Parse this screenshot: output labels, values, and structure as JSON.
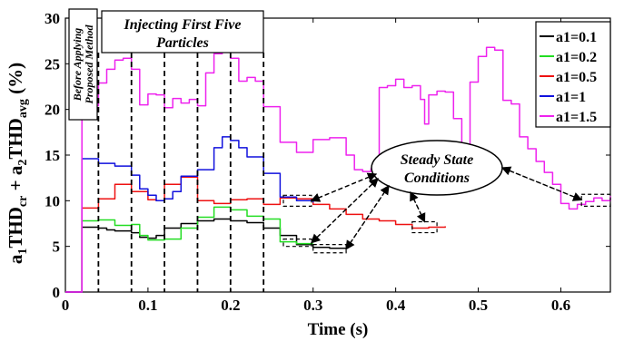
{
  "chart_data": {
    "type": "line",
    "xlabel": "Time (s)",
    "ylabel_parts": [
      "a",
      "1",
      "THD",
      "cr",
      " + a",
      "2",
      "THD",
      "avg",
      " (%)"
    ],
    "xlim": [
      0,
      0.66
    ],
    "ylim": [
      0,
      30
    ],
    "xticks": [
      0,
      0.1,
      0.2,
      0.3,
      0.4,
      0.5,
      0.6
    ],
    "xtick_labels": [
      "0",
      "0.1",
      "0.2",
      "0.3",
      "0.4",
      "0.5",
      "0.6"
    ],
    "yticks": [
      0,
      5,
      10,
      15,
      20,
      25,
      30
    ],
    "ytick_labels": [
      "0",
      "5",
      "10",
      "15",
      "20",
      "25",
      "30"
    ],
    "grid": false,
    "legend_position": "top-right",
    "particle_times": [
      0.04,
      0.08,
      0.12,
      0.16,
      0.2,
      0.24
    ],
    "annotations": {
      "before": [
        "Before Applying",
        "Proposed Method"
      ],
      "injecting": [
        "Injecting First Five",
        "Particles"
      ],
      "steady": [
        "Steady State",
        "Conditions"
      ]
    },
    "series": [
      {
        "name": "a1=0.1",
        "color": "#000000",
        "points": [
          [
            0.0,
            0
          ],
          [
            0.02,
            0
          ],
          [
            0.02,
            7.1
          ],
          [
            0.04,
            7.0
          ],
          [
            0.05,
            6.8
          ],
          [
            0.06,
            6.7
          ],
          [
            0.08,
            6.5
          ],
          [
            0.09,
            6.0
          ],
          [
            0.1,
            5.9
          ],
          [
            0.11,
            6.2
          ],
          [
            0.12,
            7.0
          ],
          [
            0.14,
            7.5
          ],
          [
            0.16,
            7.8
          ],
          [
            0.18,
            8.0
          ],
          [
            0.2,
            7.8
          ],
          [
            0.22,
            7.6
          ],
          [
            0.24,
            7.0
          ],
          [
            0.26,
            6.2
          ],
          [
            0.28,
            5.2
          ],
          [
            0.3,
            4.9
          ],
          [
            0.32,
            4.8
          ],
          [
            0.34,
            4.9
          ]
        ]
      },
      {
        "name": "a1=0.2",
        "color": "#22dd22",
        "points": [
          [
            0.0,
            0
          ],
          [
            0.02,
            0
          ],
          [
            0.02,
            7.8
          ],
          [
            0.04,
            7.9
          ],
          [
            0.06,
            7.3
          ],
          [
            0.08,
            7.4
          ],
          [
            0.09,
            6.2
          ],
          [
            0.1,
            5.7
          ],
          [
            0.12,
            5.8
          ],
          [
            0.14,
            7.0
          ],
          [
            0.16,
            8.2
          ],
          [
            0.18,
            9.3
          ],
          [
            0.2,
            9.0
          ],
          [
            0.22,
            8.3
          ],
          [
            0.24,
            8.0
          ],
          [
            0.26,
            5.5
          ],
          [
            0.28,
            5.3
          ],
          [
            0.3,
            5.3
          ]
        ]
      },
      {
        "name": "a1=0.5",
        "color": "#ee1111",
        "points": [
          [
            0.0,
            0
          ],
          [
            0.02,
            0
          ],
          [
            0.02,
            9.2
          ],
          [
            0.04,
            10.2
          ],
          [
            0.06,
            11.8
          ],
          [
            0.08,
            11.0
          ],
          [
            0.1,
            10.1
          ],
          [
            0.11,
            10.0
          ],
          [
            0.12,
            11.8
          ],
          [
            0.14,
            12.6
          ],
          [
            0.16,
            10.0
          ],
          [
            0.18,
            9.7
          ],
          [
            0.2,
            10.1
          ],
          [
            0.22,
            10.2
          ],
          [
            0.24,
            9.6
          ],
          [
            0.26,
            10.3
          ],
          [
            0.28,
            10.2
          ],
          [
            0.3,
            9.6
          ],
          [
            0.32,
            9.1
          ],
          [
            0.34,
            8.5
          ],
          [
            0.36,
            8.0
          ],
          [
            0.38,
            7.8
          ],
          [
            0.4,
            7.4
          ],
          [
            0.42,
            7.0
          ],
          [
            0.44,
            7.1
          ],
          [
            0.46,
            7.2
          ]
        ]
      },
      {
        "name": "a1=1",
        "color": "#1111dd",
        "points": [
          [
            0.0,
            0
          ],
          [
            0.02,
            0
          ],
          [
            0.02,
            14.6
          ],
          [
            0.04,
            14.1
          ],
          [
            0.06,
            13.8
          ],
          [
            0.08,
            12.8
          ],
          [
            0.09,
            11.3
          ],
          [
            0.1,
            10.6
          ],
          [
            0.11,
            10.0
          ],
          [
            0.12,
            10.2
          ],
          [
            0.13,
            11.0
          ],
          [
            0.14,
            12.7
          ],
          [
            0.16,
            13.4
          ],
          [
            0.18,
            15.8
          ],
          [
            0.19,
            17.0
          ],
          [
            0.2,
            16.6
          ],
          [
            0.21,
            15.8
          ],
          [
            0.22,
            14.8
          ],
          [
            0.24,
            13.0
          ],
          [
            0.26,
            10.4
          ],
          [
            0.28,
            10.0
          ],
          [
            0.3,
            9.8
          ]
        ]
      },
      {
        "name": "a1=1.5",
        "color": "#ee22ee",
        "points": [
          [
            0.0,
            0
          ],
          [
            0.02,
            0
          ],
          [
            0.02,
            18.9
          ],
          [
            0.03,
            20.4
          ],
          [
            0.04,
            22.9
          ],
          [
            0.05,
            24.4
          ],
          [
            0.06,
            25.4
          ],
          [
            0.07,
            25.6
          ],
          [
            0.08,
            24.4
          ],
          [
            0.09,
            20.5
          ],
          [
            0.1,
            21.7
          ],
          [
            0.11,
            21.6
          ],
          [
            0.12,
            20.2
          ],
          [
            0.13,
            21.2
          ],
          [
            0.14,
            20.7
          ],
          [
            0.15,
            21.1
          ],
          [
            0.16,
            20.4
          ],
          [
            0.17,
            24.0
          ],
          [
            0.18,
            26.1
          ],
          [
            0.19,
            26.3
          ],
          [
            0.2,
            25.6
          ],
          [
            0.21,
            23.1
          ],
          [
            0.22,
            23.5
          ],
          [
            0.23,
            23.1
          ],
          [
            0.24,
            20.3
          ],
          [
            0.26,
            16.4
          ],
          [
            0.28,
            15.3
          ],
          [
            0.3,
            16.7
          ],
          [
            0.32,
            16.9
          ],
          [
            0.33,
            16.9
          ],
          [
            0.34,
            15.0
          ],
          [
            0.35,
            13.4
          ],
          [
            0.36,
            13.2
          ],
          [
            0.37,
            13.5
          ],
          [
            0.38,
            22.4
          ],
          [
            0.39,
            22.6
          ],
          [
            0.4,
            23.3
          ],
          [
            0.41,
            22.4
          ],
          [
            0.42,
            22.6
          ],
          [
            0.43,
            21.1
          ],
          [
            0.435,
            18.4
          ],
          [
            0.44,
            21.6
          ],
          [
            0.45,
            22.0
          ],
          [
            0.46,
            21.9
          ],
          [
            0.47,
            19.0
          ],
          [
            0.48,
            15.9
          ],
          [
            0.49,
            23.0
          ],
          [
            0.5,
            25.8
          ],
          [
            0.51,
            26.8
          ],
          [
            0.52,
            26.5
          ],
          [
            0.53,
            21.0
          ],
          [
            0.54,
            20.6
          ],
          [
            0.55,
            17.0
          ],
          [
            0.56,
            15.7
          ],
          [
            0.57,
            14.3
          ],
          [
            0.58,
            13.1
          ],
          [
            0.59,
            11.8
          ],
          [
            0.6,
            9.7
          ],
          [
            0.61,
            9.1
          ],
          [
            0.62,
            9.6
          ],
          [
            0.63,
            9.9
          ],
          [
            0.64,
            10.3
          ],
          [
            0.65,
            10.0
          ],
          [
            0.66,
            10.5
          ]
        ]
      }
    ]
  }
}
